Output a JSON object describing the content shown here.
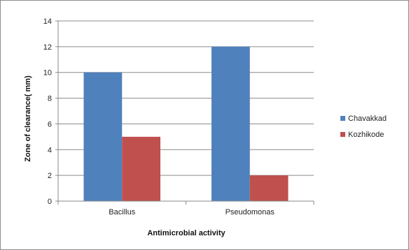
{
  "chart_data": {
    "type": "bar",
    "title": "",
    "xlabel": "Antimicrobial activity",
    "ylabel": "Zone of clearance( mm)",
    "categories": [
      "Bacillus",
      "Pseudomonas"
    ],
    "series": [
      {
        "name": "Chavakkad",
        "values": [
          10,
          12
        ],
        "color": "#4f81bd"
      },
      {
        "name": "Kozhikode",
        "values": [
          5,
          2
        ],
        "color": "#c0504d"
      }
    ],
    "ylim": [
      0,
      14
    ],
    "yticks": [
      0,
      2,
      4,
      6,
      8,
      10,
      12,
      14
    ],
    "grid": true,
    "legend": "right"
  }
}
